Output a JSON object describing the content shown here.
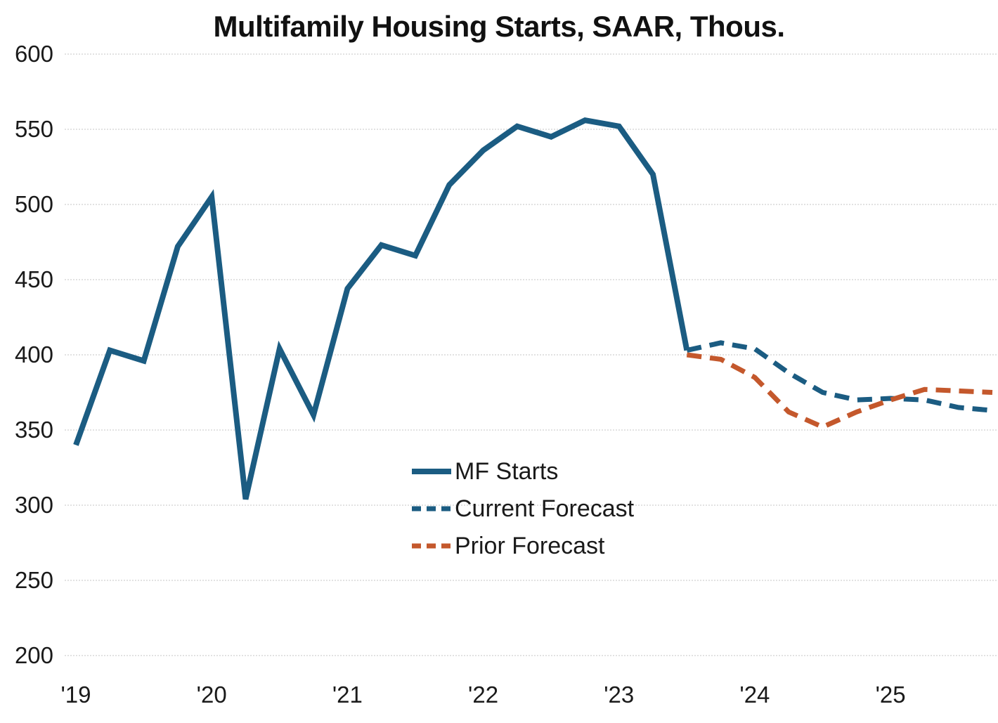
{
  "title": "Multifamily Housing Starts, SAAR, Thous.",
  "chart_data": {
    "type": "line",
    "title": "Multifamily Housing Starts, SAAR, Thous.",
    "xlabel": "",
    "ylabel": "",
    "ylim": [
      200,
      600
    ],
    "y_ticks": [
      600,
      550,
      500,
      450,
      400,
      350,
      300,
      250,
      200
    ],
    "x_tick_labels": [
      "'19",
      "'20",
      "'21",
      "'22",
      "'23",
      "'24",
      "'25"
    ],
    "grid": "horizontal-light-dotted",
    "legend_position": "inside-lower-center",
    "categories": [
      "2019Q1",
      "2019Q2",
      "2019Q3",
      "2019Q4",
      "2020Q1",
      "2020Q2",
      "2020Q3",
      "2020Q4",
      "2021Q1",
      "2021Q2",
      "2021Q3",
      "2021Q4",
      "2022Q1",
      "2022Q2",
      "2022Q3",
      "2022Q4",
      "2023Q1",
      "2023Q2",
      "2023Q3",
      "2023Q4",
      "2024Q1",
      "2024Q2",
      "2024Q3",
      "2024Q4",
      "2025Q1",
      "2025Q2",
      "2025Q3",
      "2025Q4"
    ],
    "series": [
      {
        "name": "MF Starts",
        "style": "solid",
        "color": "#1B5C82",
        "start_index": 0,
        "values": [
          340,
          403,
          396,
          472,
          505,
          304,
          404,
          360,
          444,
          473,
          466,
          513,
          536,
          552,
          545,
          556,
          552,
          520,
          403
        ]
      },
      {
        "name": "Current Forecast",
        "style": "dashed",
        "color": "#1B5C82",
        "start_index": 18,
        "values": [
          403,
          408,
          404,
          388,
          375,
          370,
          371,
          370,
          365,
          363
        ]
      },
      {
        "name": "Prior Forecast",
        "style": "dashed",
        "color": "#C4582C",
        "start_index": 18,
        "values": [
          400,
          397,
          385,
          362,
          352,
          362,
          370,
          377,
          376,
          375
        ]
      }
    ],
    "colors": {
      "blue": "#1B5C82",
      "orange": "#C4582C",
      "gridline": "#D9D9D9",
      "text": "#1A1A1A"
    }
  }
}
